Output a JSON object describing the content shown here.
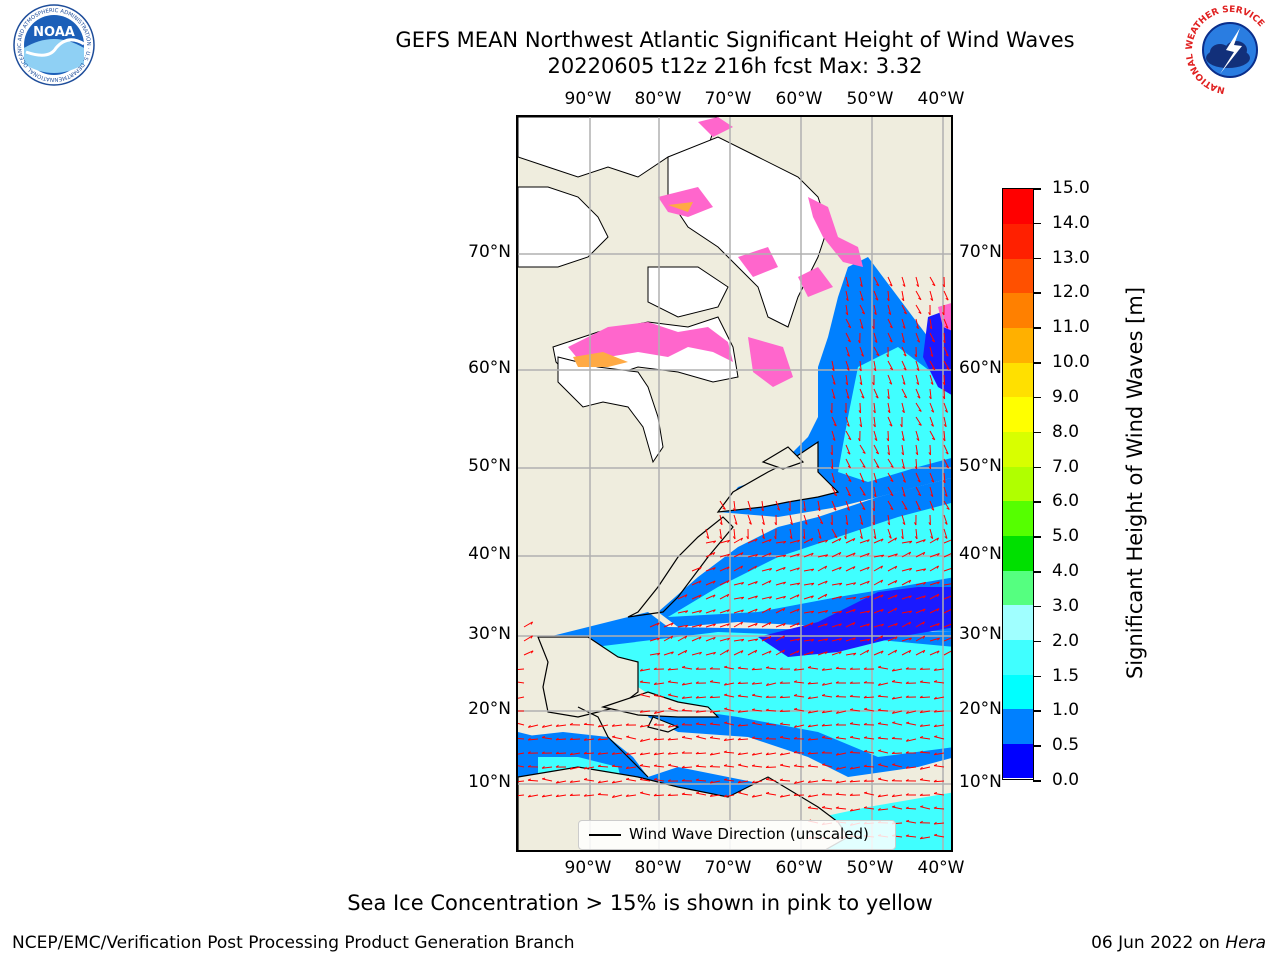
{
  "header": {
    "title_line1": "GEFS MEAN Northwest Atlantic Significant Height of Wind Waves",
    "title_line2": "20220605 t12z 216h fcst   Max: 3.32"
  },
  "logos": {
    "left": "NOAA",
    "left_ring_text": "NATIONAL OCEANIC AND ATMOSPHERIC ADMINISTRATION · U.S. DEPARTMENT OF COMMERCE",
    "right_ring_text": "NATIONAL WEATHER SERVICE"
  },
  "map": {
    "lon_labels": [
      "90°W",
      "80°W",
      "70°W",
      "60°W",
      "50°W",
      "40°W"
    ],
    "lat_labels": [
      "70°N",
      "60°N",
      "50°N",
      "40°N",
      "30°N",
      "20°N",
      "10°N"
    ],
    "legend_label": "Wind Wave Direction (unscaled)",
    "colors": {
      "land": "#efedde",
      "grid": "#b0b0b0",
      "arrow": "#ff0000"
    }
  },
  "colorbar": {
    "label": "Significant Height of Wind Waves [m]",
    "tick_labels": [
      "0.0",
      "0.5",
      "1.0",
      "1.5",
      "2.0",
      "3.0",
      "4.0",
      "5.0",
      "6.0",
      "7.0",
      "8.0",
      "9.0",
      "10.0",
      "11.0",
      "12.0",
      "13.0",
      "14.0",
      "15.0"
    ],
    "colors": [
      "#0000ff",
      "#0080ff",
      "#00ffff",
      "#40ffff",
      "#a0ffff",
      "#55ff80",
      "#00e000",
      "#55ff00",
      "#b0ff00",
      "#d8ff00",
      "#ffff00",
      "#ffe000",
      "#ffb000",
      "#ff8000",
      "#ff5000",
      "#ff2000",
      "#ff0000"
    ]
  },
  "footer": {
    "note": "Sea Ice Concentration > 15% is shown in pink to yellow",
    "left": "NCEP/EMC/Verification Post Processing Product Generation Branch",
    "right_date": "06 Jun 2022 on",
    "right_machine": "Hera"
  }
}
